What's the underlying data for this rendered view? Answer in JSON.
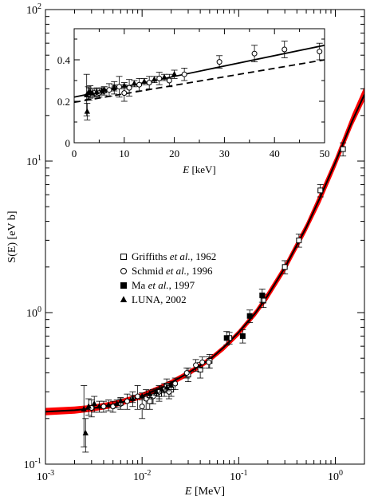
{
  "chart_data": [
    {
      "type": "scatter",
      "role": "main",
      "ylabel": "S(E) [eV b]",
      "xlabel": "E [MeV]",
      "xscale": "log",
      "yscale": "log",
      "xlim": [
        0.001,
        2.0
      ],
      "ylim": [
        0.1,
        100
      ],
      "xticks": [
        {
          "v": 0.001,
          "base": "10",
          "exp": "-3"
        },
        {
          "v": 0.01,
          "base": "10",
          "exp": "-2"
        },
        {
          "v": 0.1,
          "base": "10",
          "exp": "-1"
        },
        {
          "v": 1,
          "base": "10",
          "exp": "0"
        }
      ],
      "yticks": [
        {
          "v": 0.1,
          "base": "10",
          "exp": "-1"
        },
        {
          "v": 1,
          "base": "10",
          "exp": "0"
        },
        {
          "v": 10,
          "base": "10",
          "exp": "1"
        },
        {
          "v": 100,
          "base": "10",
          "exp": "2"
        }
      ],
      "legend_position": "center",
      "legend": [
        {
          "marker": "open-square",
          "before": "Griffiths ",
          "italic": "et al.",
          "after": ", 1962"
        },
        {
          "marker": "open-circle",
          "before": "Schmid ",
          "italic": "et al.",
          "after": ", 1996"
        },
        {
          "marker": "filled-square",
          "before": "Ma ",
          "italic": "et al.",
          "after": ", 1997"
        },
        {
          "marker": "filled-triangle",
          "before": "LUNA, 2002",
          "italic": "",
          "after": ""
        }
      ],
      "band": {
        "color": "#ff0000",
        "lower": [
          [
            0.001,
            0.21
          ],
          [
            0.002,
            0.215
          ],
          [
            0.003,
            0.222
          ],
          [
            0.005,
            0.235
          ],
          [
            0.007,
            0.25
          ],
          [
            0.01,
            0.27
          ],
          [
            0.015,
            0.3
          ],
          [
            0.02,
            0.33
          ],
          [
            0.03,
            0.38
          ],
          [
            0.05,
            0.47
          ],
          [
            0.07,
            0.56
          ],
          [
            0.1,
            0.7
          ],
          [
            0.15,
            0.95
          ],
          [
            0.2,
            1.22
          ],
          [
            0.3,
            1.85
          ],
          [
            0.5,
            3.4
          ],
          [
            0.7,
            5.3
          ],
          [
            1.0,
            9.0
          ],
          [
            1.5,
            17.0
          ],
          [
            2.0,
            25.0
          ]
        ],
        "upper": [
          [
            0.001,
            0.235
          ],
          [
            0.002,
            0.24
          ],
          [
            0.003,
            0.246
          ],
          [
            0.005,
            0.26
          ],
          [
            0.007,
            0.276
          ],
          [
            0.01,
            0.296
          ],
          [
            0.015,
            0.33
          ],
          [
            0.02,
            0.36
          ],
          [
            0.03,
            0.415
          ],
          [
            0.05,
            0.51
          ],
          [
            0.07,
            0.61
          ],
          [
            0.1,
            0.77
          ],
          [
            0.15,
            1.05
          ],
          [
            0.2,
            1.38
          ],
          [
            0.3,
            2.1
          ],
          [
            0.5,
            3.9
          ],
          [
            0.7,
            6.3
          ],
          [
            1.0,
            10.6
          ],
          [
            1.5,
            20.5
          ],
          [
            2.0,
            31.0
          ]
        ]
      },
      "curve": [
        [
          0.001,
          0.222
        ],
        [
          0.002,
          0.227
        ],
        [
          0.003,
          0.233
        ],
        [
          0.005,
          0.247
        ],
        [
          0.007,
          0.262
        ],
        [
          0.01,
          0.282
        ],
        [
          0.015,
          0.314
        ],
        [
          0.02,
          0.345
        ],
        [
          0.03,
          0.4
        ],
        [
          0.05,
          0.49
        ],
        [
          0.07,
          0.59
        ],
        [
          0.1,
          0.74
        ],
        [
          0.15,
          1.0
        ],
        [
          0.2,
          1.3
        ],
        [
          0.3,
          1.98
        ],
        [
          0.5,
          3.65
        ],
        [
          0.7,
          5.8
        ],
        [
          1.0,
          9.8
        ],
        [
          1.5,
          18.5
        ],
        [
          2.0,
          27.5
        ]
      ],
      "series": [
        {
          "name": "Griffiths et al., 1962",
          "marker": "open-square",
          "points": [
            [
              0.012,
              0.26,
              0.03
            ],
            [
              0.015,
              0.29,
              0.03
            ],
            [
              0.018,
              0.33,
              0.035
            ],
            [
              0.02,
              0.31,
              0.03
            ],
            [
              0.03,
              0.39,
              0.04
            ],
            [
              0.04,
              0.42,
              0.05
            ],
            [
              0.05,
              0.48,
              0.05
            ],
            [
              0.08,
              0.68,
              0.06
            ],
            [
              0.18,
              1.2,
              0.12
            ],
            [
              0.3,
              2.0,
              0.2
            ],
            [
              0.42,
              3.0,
              0.3
            ],
            [
              0.7,
              6.4,
              0.6
            ],
            [
              1.2,
              12.0,
              1.2
            ]
          ]
        },
        {
          "name": "Schmid et al., 1996",
          "marker": "open-circle",
          "points": [
            [
              0.003,
              0.235,
              0.03
            ],
            [
              0.004,
              0.24,
              0.02
            ],
            [
              0.005,
              0.24,
              0.02
            ],
            [
              0.006,
              0.25,
              0.02
            ],
            [
              0.007,
              0.26,
              0.03
            ],
            [
              0.008,
              0.27,
              0.03
            ],
            [
              0.009,
              0.28,
              0.05
            ],
            [
              0.01,
              0.24,
              0.04
            ],
            [
              0.011,
              0.27,
              0.04
            ],
            [
              0.013,
              0.28,
              0.03
            ],
            [
              0.015,
              0.3,
              0.03
            ],
            [
              0.017,
              0.31,
              0.03
            ],
            [
              0.019,
              0.3,
              0.03
            ],
            [
              0.022,
              0.34,
              0.03
            ],
            [
              0.029,
              0.4,
              0.03
            ],
            [
              0.036,
              0.45,
              0.04
            ],
            [
              0.042,
              0.47,
              0.04
            ],
            [
              0.049,
              0.47,
              0.04
            ]
          ]
        },
        {
          "name": "Ma et al., 1997",
          "marker": "filled-square",
          "points": [
            [
              0.075,
              0.68,
              0.07
            ],
            [
              0.11,
              0.7,
              0.07
            ],
            [
              0.13,
              0.95,
              0.09
            ],
            [
              0.175,
              1.3,
              0.13
            ]
          ]
        },
        {
          "name": "LUNA, 2002",
          "marker": "filled-triangle",
          "points": [
            [
              0.0025,
              0.23,
              0.1
            ],
            [
              0.0026,
              0.16,
              0.04
            ],
            [
              0.0028,
              0.24,
              0.03
            ],
            [
              0.0032,
              0.25,
              0.03
            ],
            [
              0.0036,
              0.24,
              0.02
            ],
            [
              0.0045,
              0.245,
              0.02
            ],
            [
              0.0055,
              0.25,
              0.015
            ],
            [
              0.006,
              0.26,
              0.015
            ],
            [
              0.008,
              0.27,
              0.015
            ],
            [
              0.01,
              0.28,
              0.015
            ],
            [
              0.012,
              0.29,
              0.015
            ],
            [
              0.014,
              0.3,
              0.015
            ],
            [
              0.016,
              0.31,
              0.015
            ],
            [
              0.018,
              0.32,
              0.015
            ],
            [
              0.02,
              0.33,
              0.02
            ]
          ]
        }
      ]
    },
    {
      "type": "scatter",
      "role": "inset",
      "xlabel": "E [keV]",
      "xlim": [
        0,
        50
      ],
      "ylim": [
        0,
        0.55
      ],
      "xticks": [
        0,
        10,
        20,
        30,
        40,
        50
      ],
      "yticks": [
        0,
        0.2,
        0.4
      ],
      "ytick_labels": [
        "0",
        "0.2",
        "0.4"
      ],
      "solid_line": [
        [
          0,
          0.22
        ],
        [
          50,
          0.47
        ]
      ],
      "dashed_line": [
        [
          0,
          0.195
        ],
        [
          50,
          0.4
        ]
      ],
      "series": [
        {
          "name": "Schmid et al., 1996",
          "marker": "open-circle",
          "points": [
            [
              3,
              0.235,
              0.03
            ],
            [
              4,
              0.24,
              0.02
            ],
            [
              5,
              0.24,
              0.02
            ],
            [
              6,
              0.25,
              0.02
            ],
            [
              7,
              0.255,
              0.03
            ],
            [
              8,
              0.265,
              0.03
            ],
            [
              9,
              0.27,
              0.05
            ],
            [
              10,
              0.24,
              0.04
            ],
            [
              11,
              0.265,
              0.04
            ],
            [
              13,
              0.28,
              0.03
            ],
            [
              15,
              0.29,
              0.03
            ],
            [
              17,
              0.31,
              0.03
            ],
            [
              19,
              0.3,
              0.03
            ],
            [
              22,
              0.33,
              0.03
            ],
            [
              29,
              0.39,
              0.03
            ],
            [
              36,
              0.43,
              0.04
            ],
            [
              42,
              0.45,
              0.04
            ],
            [
              49,
              0.44,
              0.04
            ]
          ]
        },
        {
          "name": "LUNA, 2002",
          "marker": "filled-triangle",
          "points": [
            [
              2.5,
              0.23,
              0.1
            ],
            [
              2.6,
              0.15,
              0.04
            ],
            [
              2.8,
              0.24,
              0.03
            ],
            [
              3.2,
              0.245,
              0.03
            ],
            [
              3.6,
              0.24,
              0.02
            ],
            [
              4.5,
              0.245,
              0.02
            ],
            [
              5.5,
              0.25,
              0.015
            ],
            [
              6,
              0.255,
              0.015
            ],
            [
              8,
              0.265,
              0.015
            ],
            [
              10,
              0.275,
              0.015
            ],
            [
              12,
              0.285,
              0.015
            ],
            [
              14,
              0.295,
              0.015
            ],
            [
              16,
              0.305,
              0.015
            ],
            [
              18,
              0.315,
              0.015
            ],
            [
              20,
              0.33,
              0.02
            ]
          ]
        }
      ]
    }
  ]
}
